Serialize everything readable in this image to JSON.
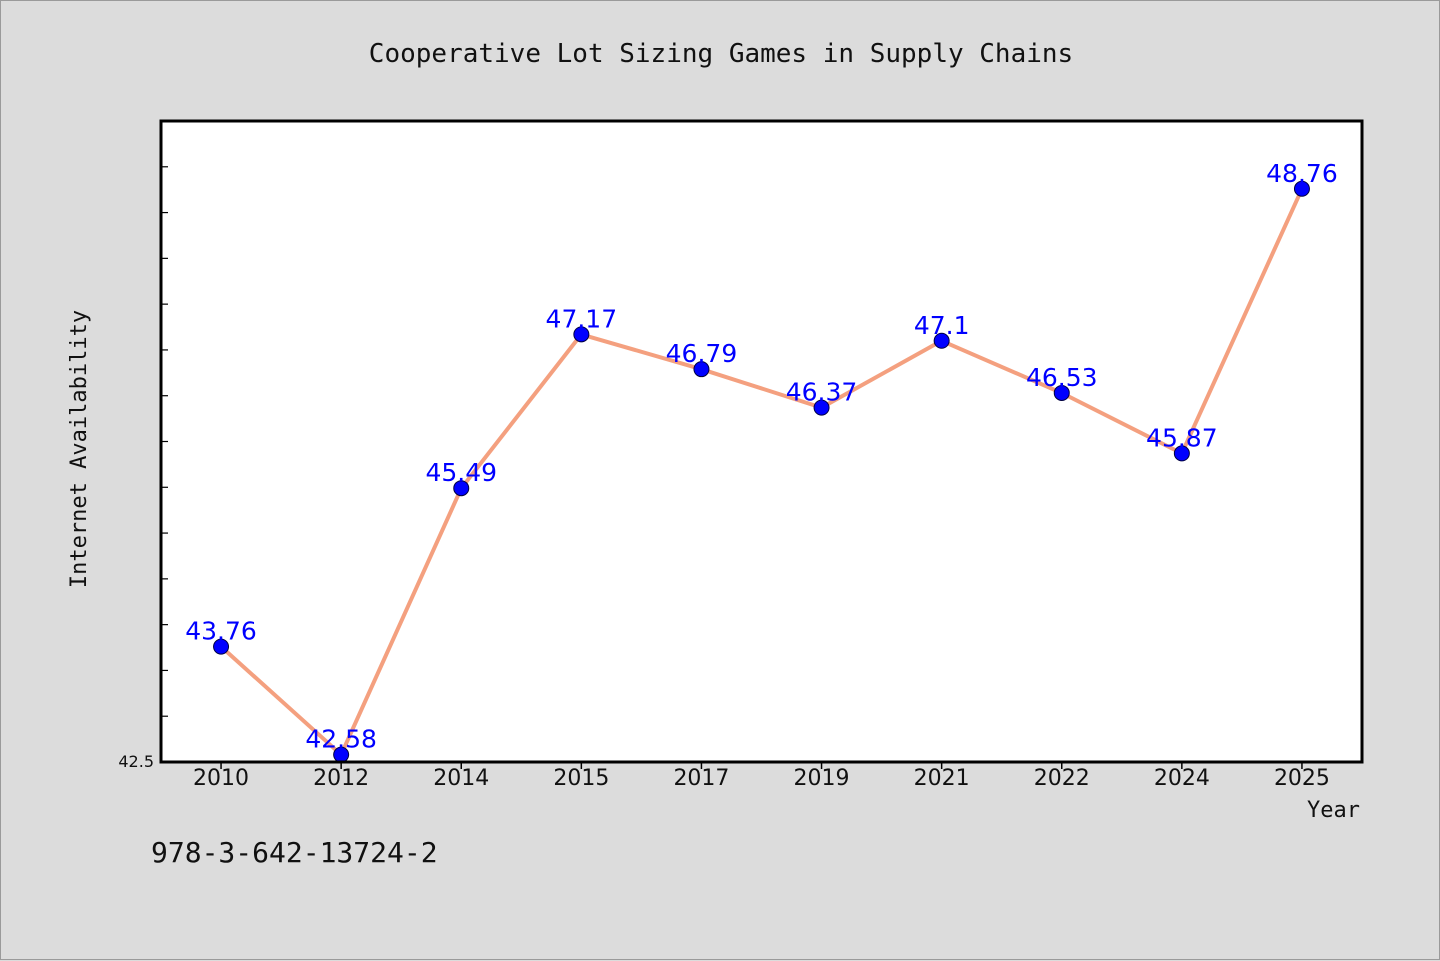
{
  "chart_data": {
    "type": "line",
    "title": "Cooperative Lot Sizing Games in Supply Chains",
    "xlabel": "Year",
    "ylabel": "Internet Availability",
    "categories": [
      "2010",
      "2012",
      "2014",
      "2015",
      "2017",
      "2019",
      "2021",
      "2022",
      "2024",
      "2025"
    ],
    "series": [
      {
        "values": [
          43.76,
          42.58,
          45.49,
          47.17,
          46.79,
          46.37,
          47.1,
          46.53,
          45.87,
          48.76
        ],
        "labels": [
          "43.76",
          "42.58",
          "45.49",
          "47.17",
          "46.79",
          "46.37",
          "47.1",
          "46.53",
          "45.87",
          "48.76"
        ]
      }
    ],
    "ylim": [
      42.5,
      49.5
    ],
    "y_min_label": "42.5",
    "grid": false,
    "legend": "none",
    "line_color": "#f4a07f",
    "marker_color": "#0000ff",
    "label_color": "#0000ff"
  },
  "footer": {
    "isbn": "978-3-642-13724-2"
  }
}
